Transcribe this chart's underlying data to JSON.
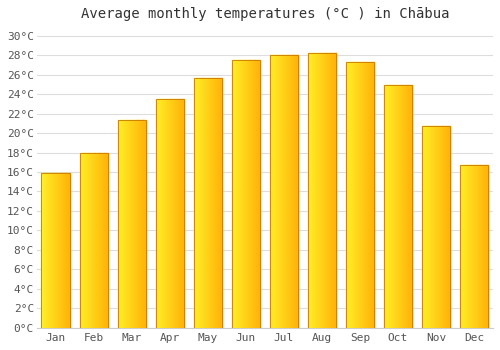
{
  "title": "Average monthly temperatures (°C ) in Chābua",
  "months": [
    "Jan",
    "Feb",
    "Mar",
    "Apr",
    "May",
    "Jun",
    "Jul",
    "Aug",
    "Sep",
    "Oct",
    "Nov",
    "Dec"
  ],
  "values": [
    15.9,
    18.0,
    21.4,
    23.5,
    25.7,
    27.5,
    28.0,
    28.3,
    27.3,
    25.0,
    20.7,
    16.7
  ],
  "bar_color_left": "#FFD966",
  "bar_color_right": "#FFA500",
  "bar_edge_color": "#C87800",
  "background_color": "#FFFFFF",
  "grid_color": "#DDDDDD",
  "ylim": [
    0,
    31
  ],
  "title_fontsize": 10,
  "tick_fontsize": 8,
  "font_family": "monospace",
  "bar_width": 0.75
}
